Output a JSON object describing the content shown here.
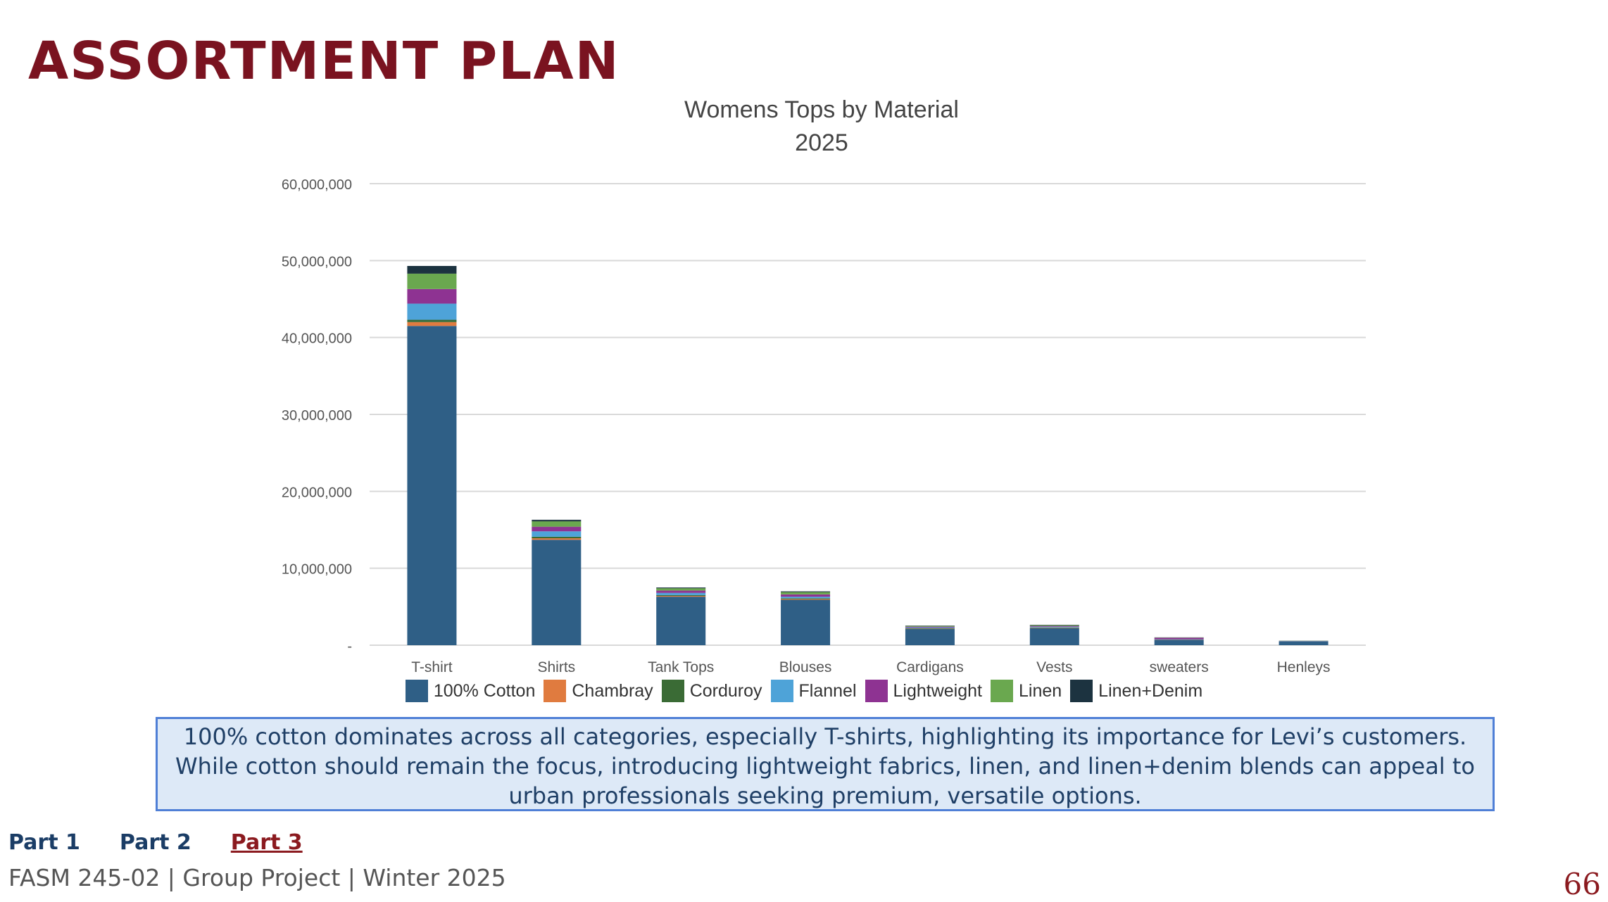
{
  "slide": {
    "title": "ASSORTMENT PLAN",
    "summary": "100% cotton dominates across all categories, especially T-shirts, highlighting its importance for Levi’s customers. While cotton should remain the focus, introducing lightweight fabrics, linen, and linen+denim blends can appeal to urban professionals seeking premium, versatile options.",
    "nav": [
      "Part 1",
      "Part 2",
      "Part 3"
    ],
    "active_nav": "Part 3",
    "footer": "FASM 245-02 | Group Project | Winter 2025",
    "page_number": "66"
  },
  "chart_data": {
    "type": "bar",
    "stacked": true,
    "title": "Womens Tops by Material",
    "subtitle": "2025",
    "xlabel": "",
    "ylabel": "",
    "ylim": [
      0,
      60000000
    ],
    "yticks": [
      0,
      10000000,
      20000000,
      30000000,
      40000000,
      50000000,
      60000000
    ],
    "ytick_labels": [
      "-",
      "10,000,000",
      "20,000,000",
      "30,000,000",
      "40,000,000",
      "50,000,000",
      "60,000,000"
    ],
    "grid": true,
    "legend_position": "bottom",
    "categories": [
      "T-shirt",
      "Shirts",
      "Tank Tops",
      "Blouses",
      "Cardigans",
      "Vests",
      "sweaters",
      "Henleys"
    ],
    "series": [
      {
        "name": "100% Cotton",
        "color": "#2f5f86",
        "values": [
          41500000,
          13700000,
          6300000,
          5900000,
          2100000,
          2200000,
          700000,
          500000
        ]
      },
      {
        "name": "Chambray",
        "color": "#e07b3f",
        "values": [
          500000,
          200000,
          100000,
          100000,
          50000,
          50000,
          20000,
          10000
        ]
      },
      {
        "name": "Corduroy",
        "color": "#3a6b35",
        "values": [
          300000,
          200000,
          100000,
          100000,
          50000,
          50000,
          20000,
          10000
        ]
      },
      {
        "name": "Flannel",
        "color": "#4ea3d8",
        "values": [
          2100000,
          700000,
          300000,
          200000,
          100000,
          100000,
          30000,
          20000
        ]
      },
      {
        "name": "Lightweight",
        "color": "#8e3392",
        "values": [
          1900000,
          600000,
          300000,
          300000,
          100000,
          100000,
          200000,
          20000
        ]
      },
      {
        "name": "Linen",
        "color": "#6aa84f",
        "values": [
          2000000,
          700000,
          300000,
          300000,
          100000,
          100000,
          30000,
          20000
        ]
      },
      {
        "name": "Linen+Denim",
        "color": "#1c3340",
        "values": [
          1000000,
          200000,
          100000,
          100000,
          50000,
          50000,
          20000,
          10000
        ]
      }
    ]
  }
}
